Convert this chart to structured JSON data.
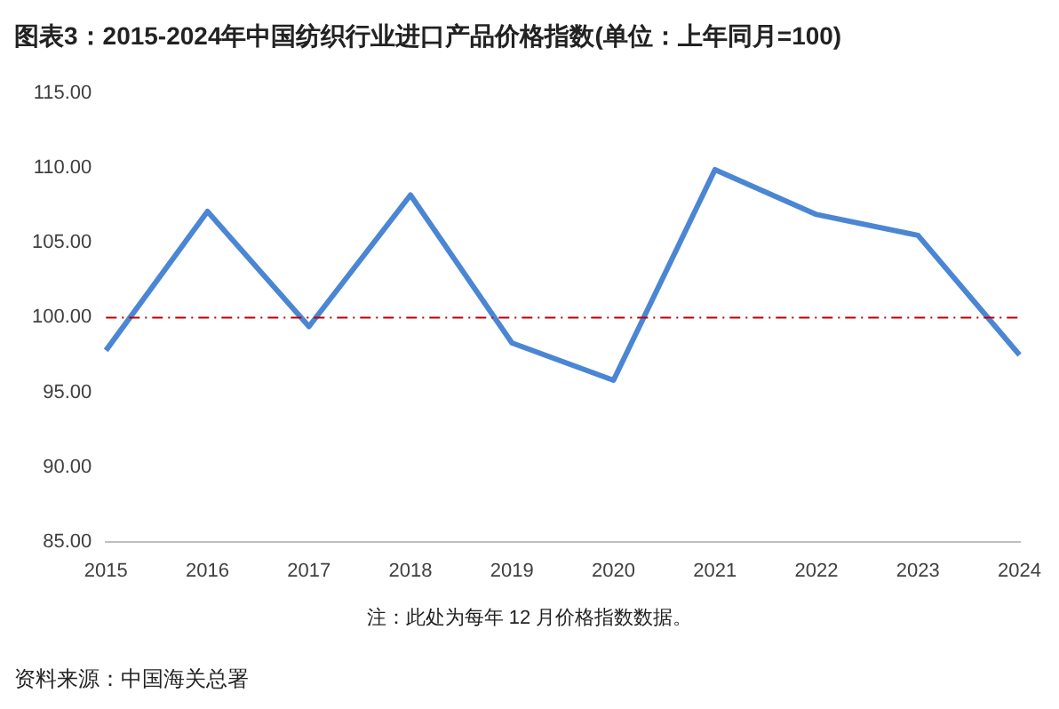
{
  "chart_data": {
    "type": "line",
    "title": "图表3：2015-2024年中国纺织行业进口产品价格指数(单位：上年同月=100)",
    "categories": [
      "2015",
      "2016",
      "2017",
      "2018",
      "2019",
      "2020",
      "2021",
      "2022",
      "2023",
      "2024"
    ],
    "series": [
      {
        "color": "#4a86d4",
        "values": [
          97.8,
          107.1,
          99.4,
          108.2,
          98.3,
          95.8,
          109.9,
          106.9,
          105.5,
          97.5
        ]
      }
    ],
    "ylim": [
      85,
      115
    ],
    "yticks": [
      {
        "value": 85,
        "label": "85.00"
      },
      {
        "value": 90,
        "label": "90.00"
      },
      {
        "value": 95,
        "label": "95.00"
      },
      {
        "value": 100,
        "label": "100.00"
      },
      {
        "value": 105,
        "label": "105.00"
      },
      {
        "value": 110,
        "label": "110.00"
      },
      {
        "value": 115,
        "label": "115.00"
      }
    ],
    "ref_lines": [
      {
        "axis": "y",
        "value": 100,
        "color": "#c00000",
        "line_style": "dashdot"
      }
    ],
    "grid": false,
    "legend": false,
    "marker": "none",
    "line_style": "solid",
    "annotations": [
      "注：此处为每年 12 月价格指数数据。",
      "资料来源：中国海关总署"
    ]
  }
}
